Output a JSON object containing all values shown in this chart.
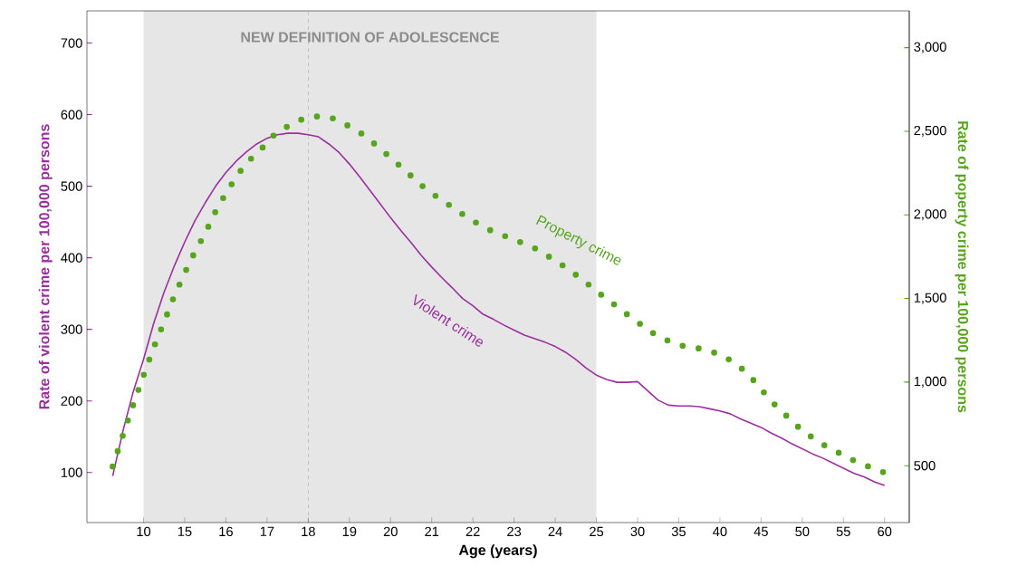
{
  "chart_data": {
    "type": "line",
    "categories": [
      null,
      null,
      null,
      "10",
      null,
      null,
      null,
      "15",
      null,
      null,
      null,
      "16",
      null,
      null,
      null,
      "17",
      null,
      null,
      null,
      "18",
      null,
      null,
      null,
      "19",
      null,
      null,
      null,
      "20",
      null,
      null,
      null,
      "21",
      null,
      null,
      null,
      "22",
      null,
      null,
      null,
      "23",
      null,
      null,
      null,
      "24",
      null,
      null,
      null,
      "25",
      null,
      null,
      null,
      "30",
      null,
      null,
      null,
      "35",
      null,
      null,
      null,
      "40",
      null,
      null,
      null,
      "45",
      null,
      null,
      null,
      "50",
      null,
      null,
      null,
      "55",
      null,
      null,
      null,
      "60"
    ],
    "xlabel": "Age (years)",
    "ylabel": "Rate of violent crime per 100,000 persons",
    "y2label": "Rate of poperty crime per 100,000 persons",
    "ylim": [
      30,
      745
    ],
    "yticks": [
      100,
      200,
      300,
      400,
      500,
      600,
      700
    ],
    "y2lim": [
      160,
      3220
    ],
    "y2ticks": [
      500,
      {
        "value": 1000,
        "label": "1,000"
      },
      {
        "value": 1500,
        "label": "1,500"
      },
      {
        "value": 2000,
        "label": "2,000"
      },
      {
        "value": 2500,
        "label": "2,500"
      },
      {
        "value": 3000,
        "label": "3,000"
      }
    ],
    "series": [
      {
        "name": "Violent crime",
        "color": "#9b2f9d",
        "line_style": "solid",
        "values": [
          95,
          158,
          213,
          258,
          309,
          352,
          389,
          422,
          452,
          477,
          500,
          519,
          535,
          548,
          559,
          567,
          572,
          574,
          574,
          572,
          569,
          559,
          547,
          531,
          513,
          494,
          475,
          456,
          438,
          421,
          403,
          387,
          372,
          358,
          343,
          333,
          321,
          314,
          306,
          299,
          292,
          287,
          282,
          276,
          268,
          258,
          246,
          236,
          230,
          226,
          226,
          227,
          214,
          201,
          194,
          193,
          193,
          192,
          189,
          186,
          182,
          175,
          169,
          163,
          155,
          148,
          140,
          133,
          126,
          120,
          113,
          106,
          99,
          94,
          87,
          82
        ]
      },
      {
        "name": "Property crime",
        "color": "#56a51c",
        "line_style": "dotted",
        "axis": "y2",
        "values": [
          495,
          684,
          865,
          1041,
          1209,
          1360,
          1517,
          1653,
          1780,
          1891,
          2021,
          2129,
          2226,
          2313,
          2364,
          2432,
          2499,
          2529,
          2562,
          2584,
          2589,
          2586,
          2562,
          2529,
          2494,
          2448,
          2395,
          2343,
          2288,
          2233,
          2177,
          2129,
          2087,
          2046,
          2004,
          1964,
          1930,
          1898,
          1876,
          1853,
          1826,
          1801,
          1766,
          1725,
          1687,
          1642,
          1595,
          1545,
          1496,
          1452,
          1404,
          1360,
          1312,
          1275,
          1246,
          1222,
          1210,
          1201,
          1184,
          1166,
          1131,
          1088,
          1030,
          958,
          885,
          825,
          768,
          709,
          668,
          627,
          595,
          563,
          531,
          506,
          481,
          458
        ]
      }
    ],
    "bands": [
      {
        "axis": "x",
        "from": "10",
        "to": "25",
        "label": "NEW DEFINITION OF ADOLESCENCE",
        "color": "#e6e6e6"
      }
    ],
    "ref_lines": [
      {
        "axis": "x",
        "value": "18",
        "color": "#999999",
        "line_style": "dashed"
      }
    ],
    "grid": false
  }
}
